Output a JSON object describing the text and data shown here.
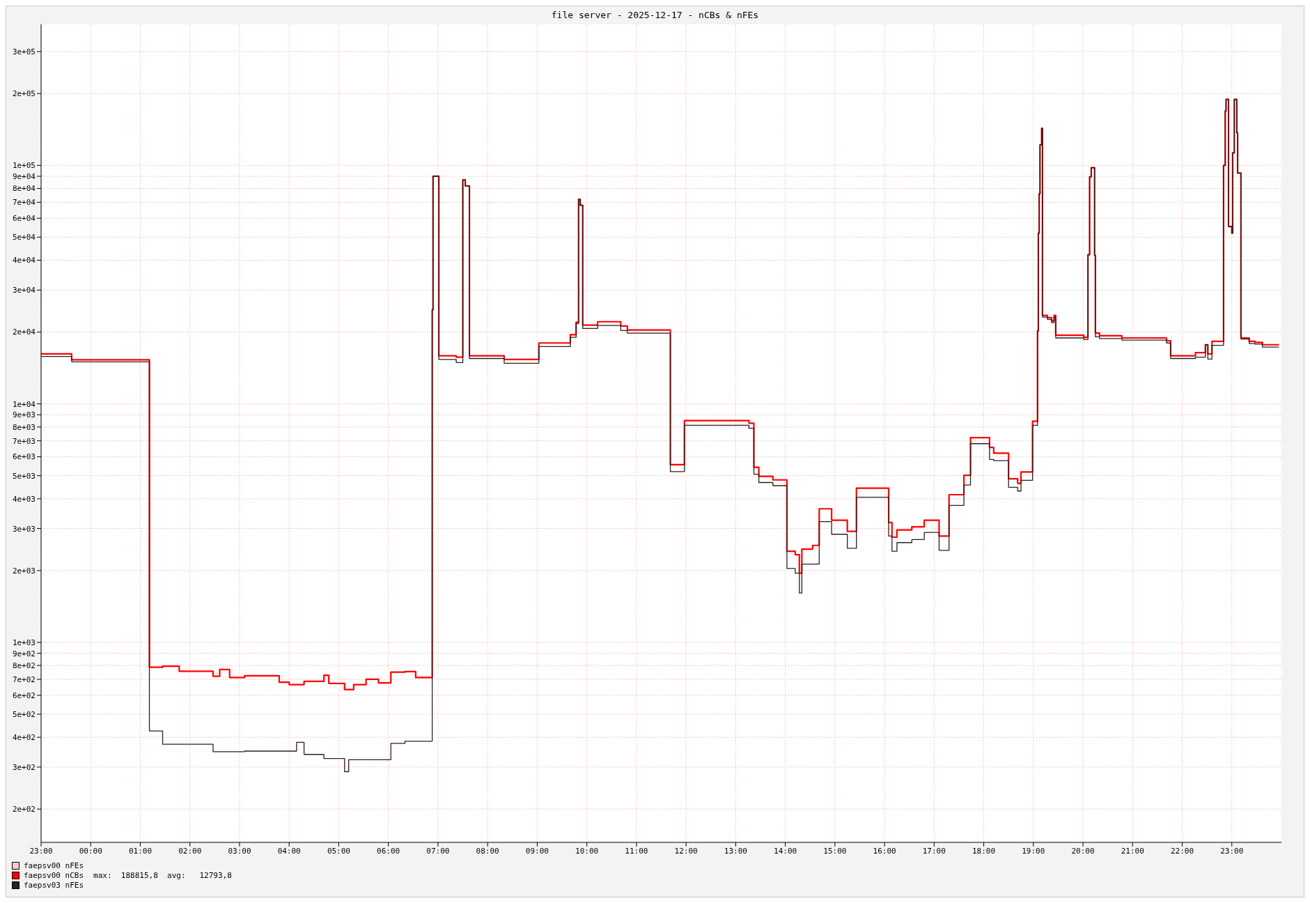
{
  "chart_data": {
    "type": "step",
    "title": "file server - 2025-12-17 - nCBs & nFEs",
    "x": [
      "2025-12-16T23:00",
      "2025-12-16T23:37",
      "2025-12-17T01:11",
      "2025-12-17T01:27",
      "2025-12-17T01:47",
      "2025-12-17T02:28",
      "2025-12-17T02:36",
      "2025-12-17T02:48",
      "2025-12-17T03:06",
      "2025-12-17T03:48",
      "2025-12-17T04:00",
      "2025-12-17T04:09",
      "2025-12-17T04:18",
      "2025-12-17T04:42",
      "2025-12-17T04:48",
      "2025-12-17T05:07",
      "2025-12-17T05:12",
      "2025-12-17T05:18",
      "2025-12-17T05:33",
      "2025-12-17T05:48",
      "2025-12-17T06:03",
      "2025-12-17T06:20",
      "2025-12-17T06:33",
      "2025-12-17T06:53",
      "2025-12-17T06:54",
      "2025-12-17T07:01",
      "2025-12-17T07:22",
      "2025-12-17T07:30",
      "2025-12-17T07:33",
      "2025-12-17T07:38",
      "2025-12-17T08:20",
      "2025-12-17T09:02",
      "2025-12-17T09:40",
      "2025-12-17T09:47",
      "2025-12-17T09:50",
      "2025-12-17T09:52",
      "2025-12-17T09:55",
      "2025-12-17T10:13",
      "2025-12-17T10:41",
      "2025-12-17T10:49",
      "2025-12-17T11:41",
      "2025-12-17T11:58",
      "2025-12-17T13:16",
      "2025-12-17T13:22",
      "2025-12-17T13:28",
      "2025-12-17T13:45",
      "2025-12-17T14:02",
      "2025-12-17T14:12",
      "2025-12-17T14:17",
      "2025-12-17T14:20",
      "2025-12-17T14:33",
      "2025-12-17T14:41",
      "2025-12-17T14:56",
      "2025-12-17T15:15",
      "2025-12-17T15:26",
      "2025-12-17T16:05",
      "2025-12-17T16:09",
      "2025-12-17T16:15",
      "2025-12-17T16:33",
      "2025-12-17T16:48",
      "2025-12-17T17:06",
      "2025-12-17T17:18",
      "2025-12-17T17:36",
      "2025-12-17T17:44",
      "2025-12-17T18:07",
      "2025-12-17T18:12",
      "2025-12-17T18:30",
      "2025-12-17T18:41",
      "2025-12-17T18:45",
      "2025-12-17T18:59",
      "2025-12-17T19:05",
      "2025-12-17T19:06",
      "2025-12-17T19:07",
      "2025-12-17T19:08",
      "2025-12-17T19:10",
      "2025-12-17T19:11",
      "2025-12-17T19:17",
      "2025-12-17T19:22",
      "2025-12-17T19:25",
      "2025-12-17T19:27",
      "2025-12-17T20:01",
      "2025-12-17T20:06",
      "2025-12-17T20:08",
      "2025-12-17T20:10",
      "2025-12-17T20:14",
      "2025-12-17T20:15",
      "2025-12-17T20:20",
      "2025-12-17T20:47",
      "2025-12-17T21:41",
      "2025-12-17T21:46",
      "2025-12-17T22:16",
      "2025-12-17T22:28",
      "2025-12-17T22:31",
      "2025-12-17T22:36",
      "2025-12-17T22:50",
      "2025-12-17T22:52",
      "2025-12-17T22:53",
      "2025-12-17T22:56",
      "2025-12-17T23:00",
      "2025-12-17T23:01",
      "2025-12-17T23:03",
      "2025-12-17T23:06",
      "2025-12-17T23:07",
      "2025-12-17T23:11",
      "2025-12-17T23:21",
      "2025-12-17T23:28",
      "2025-12-17T23:37",
      "2025-12-17T23:57"
    ],
    "series": [
      {
        "name": "faepsv00 nFEs",
        "color": "#ffcccc",
        "values": [
          null,
          null,
          null,
          null,
          null,
          null,
          null,
          null,
          null,
          null,
          null,
          null,
          null,
          null,
          null,
          null,
          null,
          null,
          null,
          null,
          null,
          null,
          null,
          null,
          null,
          null,
          null,
          null,
          null,
          null,
          null,
          null,
          null,
          null,
          null,
          null,
          null,
          null,
          null,
          null,
          null,
          null,
          null,
          null,
          null,
          null,
          null,
          null,
          null,
          null,
          null,
          null,
          null,
          null,
          null,
          null,
          null,
          null,
          null,
          null,
          null,
          null,
          null,
          null,
          null,
          null,
          null,
          null,
          null,
          null,
          null,
          null,
          null,
          null,
          null,
          null,
          null,
          null,
          null,
          null,
          null,
          null,
          null,
          null,
          null,
          null,
          null,
          null,
          null,
          null,
          null,
          null,
          null,
          null,
          null,
          null,
          null,
          null,
          null,
          null,
          null,
          null,
          null,
          null,
          null,
          null,
          null,
          null
        ]
      },
      {
        "name": "faepsv00 nCBs",
        "color": "#ff0000",
        "values": [
          16200,
          15300,
          787,
          795,
          757,
          721,
          770,
          712,
          724,
          681,
          665,
          665,
          686,
          728,
          673,
          634,
          634,
          665,
          700,
          676,
          750,
          754,
          712,
          24800,
          90100,
          15900,
          15700,
          87000,
          82000,
          15900,
          15350,
          18000,
          19500,
          22000,
          72000,
          68000,
          21400,
          22100,
          21200,
          20400,
          5560,
          8510,
          8300,
          5420,
          4970,
          4800,
          2410,
          2330,
          1950,
          2460,
          2550,
          3630,
          3250,
          2920,
          4430,
          3180,
          2760,
          2960,
          3050,
          3250,
          2790,
          4160,
          5020,
          7220,
          6570,
          6210,
          4850,
          4640,
          5180,
          8450,
          20200,
          52000,
          76000,
          122000,
          143000,
          23500,
          23000,
          22300,
          23500,
          19400,
          19000,
          42200,
          89500,
          97800,
          42000,
          19800,
          19300,
          18900,
          18400,
          15900,
          16400,
          17700,
          16200,
          18300,
          100000,
          169000,
          189000,
          55400,
          52000,
          112800,
          189000,
          137000,
          92800,
          18900,
          18300,
          18100,
          17700,
          17700
        ]
      },
      {
        "name": "faepsv03 nFEs",
        "color": "#2b2020",
        "values": [
          15800,
          15000,
          425,
          374,
          374,
          348,
          348,
          348,
          350,
          350,
          350,
          381,
          339,
          326,
          326,
          287,
          322,
          322,
          322,
          322,
          377,
          385,
          385,
          24800,
          90100,
          15350,
          14900,
          87000,
          82000,
          15500,
          14800,
          17400,
          19000,
          21700,
          72000,
          68000,
          20700,
          21300,
          20300,
          19800,
          5200,
          8130,
          7900,
          5070,
          4680,
          4540,
          2040,
          1950,
          1610,
          2130,
          2130,
          3210,
          2840,
          2480,
          4060,
          2790,
          2410,
          2620,
          2700,
          2890,
          2430,
          3750,
          4570,
          6810,
          5850,
          5780,
          4470,
          4310,
          4780,
          8130,
          20200,
          52000,
          76000,
          122000,
          143000,
          23100,
          22600,
          21900,
          23100,
          18900,
          18600,
          42200,
          89500,
          97800,
          42000,
          19100,
          18800,
          18500,
          18000,
          15500,
          15700,
          17700,
          15400,
          17600,
          100000,
          169000,
          189000,
          55400,
          52000,
          112800,
          189000,
          137000,
          92800,
          18700,
          17900,
          17800,
          17300,
          17300
        ]
      }
    ],
    "annotations": [
      "max:  188815,8  avg:   12793,8"
    ],
    "xlim": [
      "2025-12-16T23:00",
      "2025-12-18T00:00"
    ],
    "xticks": [
      {
        "value": "2025-12-16T23:00",
        "label": "23:00"
      },
      {
        "value": "2025-12-17T00:00",
        "label": "00:00"
      },
      {
        "value": "2025-12-17T01:00",
        "label": "01:00"
      },
      {
        "value": "2025-12-17T02:00",
        "label": "02:00"
      },
      {
        "value": "2025-12-17T03:00",
        "label": "03:00"
      },
      {
        "value": "2025-12-17T04:00",
        "label": "04:00"
      },
      {
        "value": "2025-12-17T05:00",
        "label": "05:00"
      },
      {
        "value": "2025-12-17T06:00",
        "label": "06:00"
      },
      {
        "value": "2025-12-17T07:00",
        "label": "07:00"
      },
      {
        "value": "2025-12-17T08:00",
        "label": "08:00"
      },
      {
        "value": "2025-12-17T09:00",
        "label": "09:00"
      },
      {
        "value": "2025-12-17T10:00",
        "label": "10:00"
      },
      {
        "value": "2025-12-17T11:00",
        "label": "11:00"
      },
      {
        "value": "2025-12-17T12:00",
        "label": "12:00"
      },
      {
        "value": "2025-12-17T13:00",
        "label": "13:00"
      },
      {
        "value": "2025-12-17T14:00",
        "label": "14:00"
      },
      {
        "value": "2025-12-17T15:00",
        "label": "15:00"
      },
      {
        "value": "2025-12-17T16:00",
        "label": "16:00"
      },
      {
        "value": "2025-12-17T17:00",
        "label": "17:00"
      },
      {
        "value": "2025-12-17T18:00",
        "label": "18:00"
      },
      {
        "value": "2025-12-17T19:00",
        "label": "19:00"
      },
      {
        "value": "2025-12-17T20:00",
        "label": "20:00"
      },
      {
        "value": "2025-12-17T21:00",
        "label": "21:00"
      },
      {
        "value": "2025-12-17T22:00",
        "label": "22:00"
      },
      {
        "value": "2025-12-17T23:00",
        "label": "23:00"
      }
    ],
    "ylim": [
      145,
      390000
    ],
    "yticks": [
      {
        "value": 200,
        "label": "2e+02"
      },
      {
        "value": 300,
        "label": "3e+02"
      },
      {
        "value": 400,
        "label": "4e+02"
      },
      {
        "value": 500,
        "label": "5e+02"
      },
      {
        "value": 600,
        "label": "6e+02"
      },
      {
        "value": 700,
        "label": "7e+02"
      },
      {
        "value": 800,
        "label": "8e+02"
      },
      {
        "value": 900,
        "label": "9e+02"
      },
      {
        "value": 1000,
        "label": "1e+03"
      },
      {
        "value": 2000,
        "label": "2e+03"
      },
      {
        "value": 3000,
        "label": "3e+03"
      },
      {
        "value": 4000,
        "label": "4e+03"
      },
      {
        "value": 5000,
        "label": "5e+03"
      },
      {
        "value": 6000,
        "label": "6e+03"
      },
      {
        "value": 7000,
        "label": "7e+03"
      },
      {
        "value": 8000,
        "label": "8e+03"
      },
      {
        "value": 9000,
        "label": "9e+03"
      },
      {
        "value": 10000,
        "label": "1e+04"
      },
      {
        "value": 20000,
        "label": "2e+04"
      },
      {
        "value": 30000,
        "label": "3e+04"
      },
      {
        "value": 40000,
        "label": "4e+04"
      },
      {
        "value": 50000,
        "label": "5e+04"
      },
      {
        "value": 60000,
        "label": "6e+04"
      },
      {
        "value": 70000,
        "label": "7e+04"
      },
      {
        "value": 80000,
        "label": "8e+04"
      },
      {
        "value": 90000,
        "label": "9e+04"
      },
      {
        "value": 100000,
        "label": "1e+05"
      },
      {
        "value": 200000,
        "label": "2e+05"
      },
      {
        "value": 300000,
        "label": "3e+05"
      }
    ],
    "log": true,
    "grid": true,
    "legend": "bottom left"
  }
}
